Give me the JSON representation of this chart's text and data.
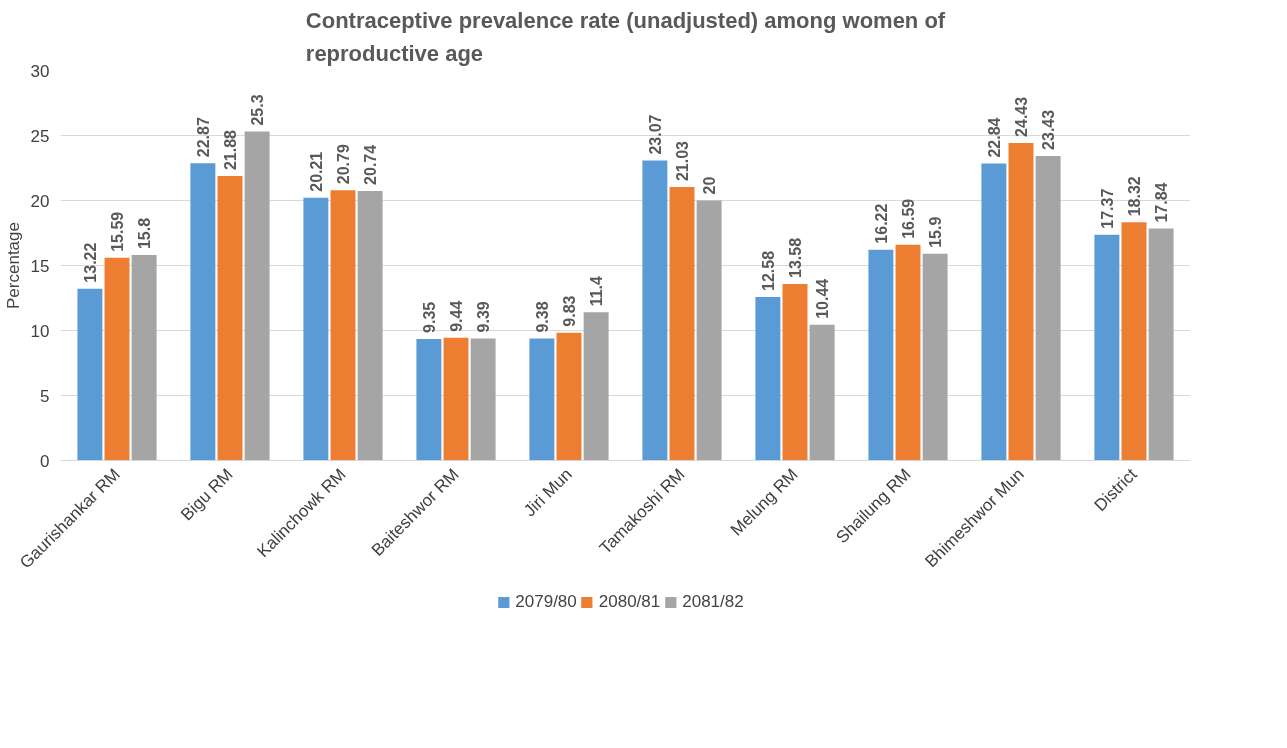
{
  "chart_data": {
    "type": "bar",
    "title": "Contraceptive prevalence rate (unadjusted) among women of reproductive age",
    "ylabel": "Percentage",
    "categories": [
      "Gaurishankar RM",
      "Bigu RM",
      "Kalinchowk RM",
      "Baiteshwor RM",
      "Jiri Mun",
      "Tamakoshi RM",
      "Melung RM",
      "Shailung RM",
      "Bhimeshwor Mun",
      "District"
    ],
    "series": [
      {
        "name": "2079/80",
        "color": "#5b9bd5",
        "values": [
          13.22,
          22.87,
          20.21,
          9.35,
          9.38,
          23.07,
          12.58,
          16.22,
          22.84,
          17.37
        ]
      },
      {
        "name": "2080/81",
        "color": "#ed7d31",
        "values": [
          15.59,
          21.88,
          20.79,
          9.44,
          9.83,
          21.03,
          13.58,
          16.59,
          24.43,
          18.32
        ]
      },
      {
        "name": "2081/82",
        "color": "#a5a5a5",
        "values": [
          15.8,
          25.3,
          20.74,
          9.39,
          11.4,
          20,
          10.44,
          15.9,
          23.43,
          17.84
        ]
      }
    ],
    "ylim": [
      0,
      30
    ],
    "yticks": [
      0,
      5,
      10,
      15,
      20,
      25,
      30
    ],
    "grid": "y",
    "legend": "bottom",
    "data_labels": true
  }
}
